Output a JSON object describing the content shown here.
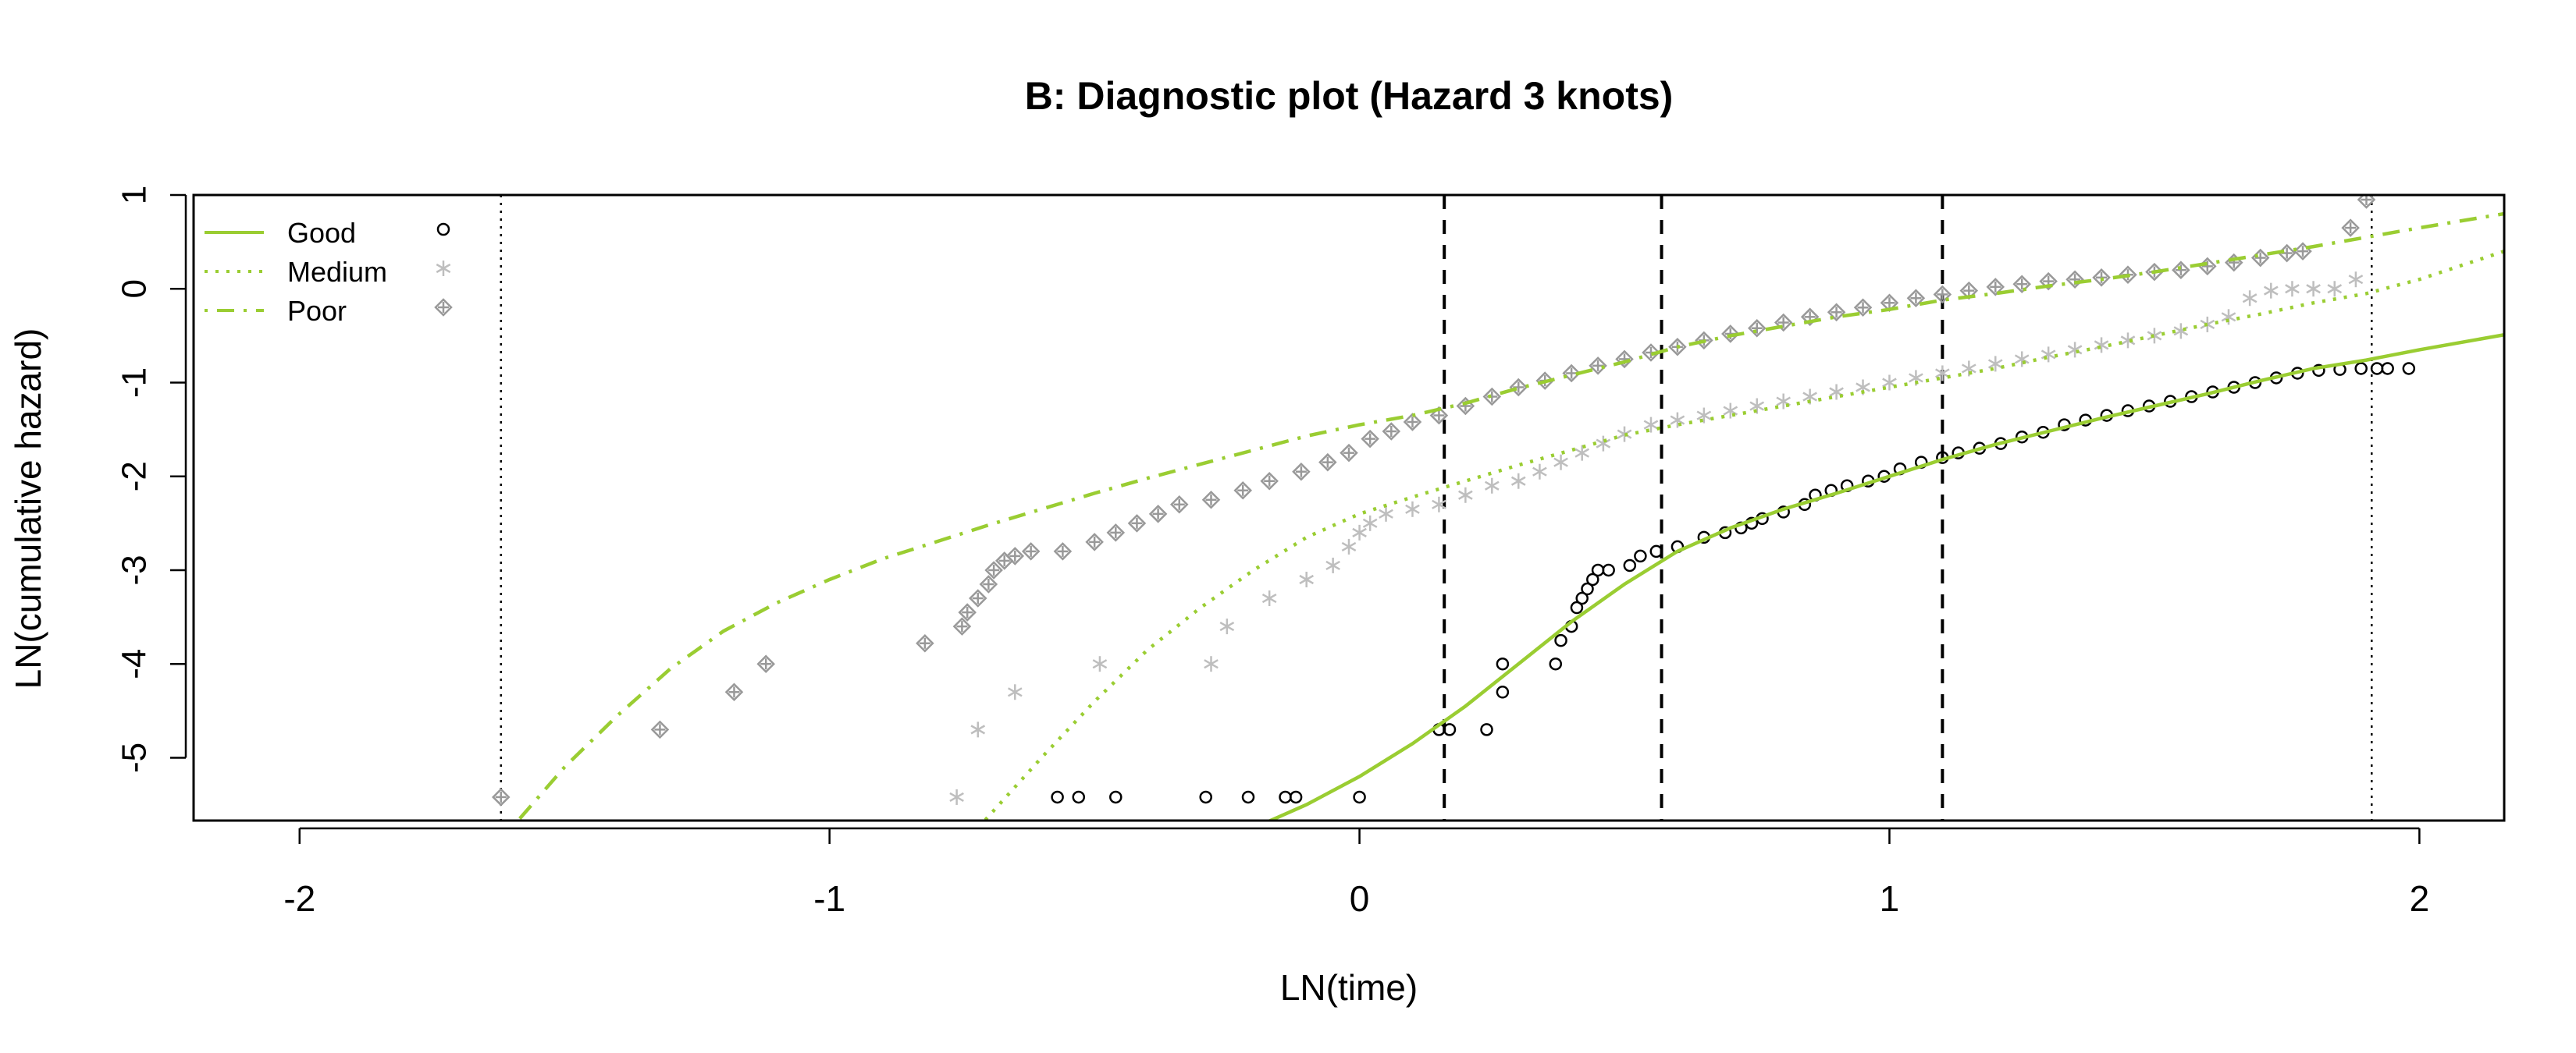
{
  "chart_data": {
    "type": "scatter",
    "title": "B: Diagnostic plot (Hazard 3 knots)",
    "xlabel": "LN(time)",
    "ylabel": "LN(cumulative hazard)",
    "xlim": [
      -2.2,
      2.16
    ],
    "ylim": [
      -5.67,
      1.0
    ],
    "xticks": [
      -2,
      -1,
      0,
      1,
      2
    ],
    "yticks": [
      -5,
      -4,
      -3,
      -2,
      -1,
      0,
      1
    ],
    "grid": false,
    "legend_position": "top-left",
    "boundary_knots": [
      -1.62,
      1.91
    ],
    "interior_knots": [
      0.16,
      0.57,
      1.1
    ],
    "line_color": "#9ACD32",
    "series": [
      {
        "name": "Good",
        "line_style": "solid",
        "marker": "circle",
        "marker_color": "#000000",
        "fit": [
          [
            -0.2,
            -5.75
          ],
          [
            -0.1,
            -5.5
          ],
          [
            0.0,
            -5.2
          ],
          [
            0.1,
            -4.85
          ],
          [
            0.2,
            -4.45
          ],
          [
            0.3,
            -4.0
          ],
          [
            0.4,
            -3.55
          ],
          [
            0.5,
            -3.15
          ],
          [
            0.6,
            -2.8
          ],
          [
            0.7,
            -2.55
          ],
          [
            0.8,
            -2.35
          ],
          [
            0.9,
            -2.18
          ],
          [
            1.0,
            -2.0
          ],
          [
            1.1,
            -1.82
          ],
          [
            1.2,
            -1.66
          ],
          [
            1.3,
            -1.52
          ],
          [
            1.4,
            -1.38
          ],
          [
            1.5,
            -1.25
          ],
          [
            1.6,
            -1.12
          ],
          [
            1.7,
            -0.98
          ],
          [
            1.8,
            -0.85
          ],
          [
            1.9,
            -0.76
          ],
          [
            2.0,
            -0.65
          ],
          [
            2.16,
            -0.49
          ]
        ],
        "points": [
          [
            0.0,
            -5.42
          ],
          [
            -0.12,
            -5.42
          ],
          [
            -0.14,
            -5.42
          ],
          [
            -0.21,
            -5.42
          ],
          [
            -0.29,
            -5.42
          ],
          [
            -0.46,
            -5.42
          ],
          [
            -0.53,
            -5.42
          ],
          [
            -0.57,
            -5.42
          ],
          [
            0.15,
            -4.7
          ],
          [
            0.17,
            -4.7
          ],
          [
            0.24,
            -4.7
          ],
          [
            0.27,
            -4.3
          ],
          [
            0.27,
            -4.0
          ],
          [
            0.37,
            -4.0
          ],
          [
            0.38,
            -3.75
          ],
          [
            0.4,
            -3.6
          ],
          [
            0.41,
            -3.4
          ],
          [
            0.42,
            -3.3
          ],
          [
            0.43,
            -3.2
          ],
          [
            0.44,
            -3.1
          ],
          [
            0.45,
            -3.0
          ],
          [
            0.47,
            -3.0
          ],
          [
            0.51,
            -2.95
          ],
          [
            0.53,
            -2.85
          ],
          [
            0.56,
            -2.8
          ],
          [
            0.6,
            -2.75
          ],
          [
            0.65,
            -2.65
          ],
          [
            0.69,
            -2.6
          ],
          [
            0.72,
            -2.55
          ],
          [
            0.74,
            -2.5
          ],
          [
            0.76,
            -2.45
          ],
          [
            0.8,
            -2.38
          ],
          [
            0.84,
            -2.3
          ],
          [
            0.86,
            -2.2
          ],
          [
            0.89,
            -2.15
          ],
          [
            0.92,
            -2.1
          ],
          [
            0.96,
            -2.05
          ],
          [
            0.99,
            -2.0
          ],
          [
            1.02,
            -1.92
          ],
          [
            1.06,
            -1.85
          ],
          [
            1.1,
            -1.8
          ],
          [
            1.13,
            -1.75
          ],
          [
            1.17,
            -1.7
          ],
          [
            1.21,
            -1.65
          ],
          [
            1.25,
            -1.58
          ],
          [
            1.29,
            -1.53
          ],
          [
            1.33,
            -1.45
          ],
          [
            1.37,
            -1.4
          ],
          [
            1.41,
            -1.35
          ],
          [
            1.45,
            -1.3
          ],
          [
            1.49,
            -1.25
          ],
          [
            1.53,
            -1.2
          ],
          [
            1.57,
            -1.15
          ],
          [
            1.61,
            -1.1
          ],
          [
            1.65,
            -1.05
          ],
          [
            1.69,
            -1.0
          ],
          [
            1.73,
            -0.95
          ],
          [
            1.77,
            -0.9
          ],
          [
            1.81,
            -0.87
          ],
          [
            1.85,
            -0.86
          ],
          [
            1.89,
            -0.85
          ],
          [
            1.92,
            -0.85
          ],
          [
            1.94,
            -0.85
          ],
          [
            1.98,
            -0.85
          ]
        ]
      },
      {
        "name": "Medium",
        "line_style": "dotted",
        "marker": "asterisk",
        "marker_color": "#BEBEBE",
        "fit": [
          [
            -0.72,
            -5.75
          ],
          [
            -0.6,
            -5.0
          ],
          [
            -0.5,
            -4.4
          ],
          [
            -0.4,
            -3.85
          ],
          [
            -0.3,
            -3.4
          ],
          [
            -0.2,
            -3.0
          ],
          [
            -0.1,
            -2.65
          ],
          [
            0.0,
            -2.4
          ],
          [
            0.1,
            -2.22
          ],
          [
            0.2,
            -2.05
          ],
          [
            0.3,
            -1.88
          ],
          [
            0.4,
            -1.72
          ],
          [
            0.5,
            -1.56
          ],
          [
            0.6,
            -1.45
          ],
          [
            0.7,
            -1.35
          ],
          [
            0.8,
            -1.25
          ],
          [
            0.9,
            -1.15
          ],
          [
            1.0,
            -1.05
          ],
          [
            1.1,
            -0.95
          ],
          [
            1.2,
            -0.85
          ],
          [
            1.3,
            -0.73
          ],
          [
            1.4,
            -0.62
          ],
          [
            1.5,
            -0.5
          ],
          [
            1.6,
            -0.38
          ],
          [
            1.7,
            -0.27
          ],
          [
            1.8,
            -0.15
          ],
          [
            1.9,
            -0.05
          ],
          [
            2.0,
            0.1
          ],
          [
            2.16,
            0.4
          ]
        ],
        "points": [
          [
            -0.76,
            -5.42
          ],
          [
            -0.72,
            -4.7
          ],
          [
            -0.65,
            -4.3
          ],
          [
            -0.49,
            -4.0
          ],
          [
            -0.28,
            -4.0
          ],
          [
            -0.25,
            -3.6
          ],
          [
            -0.17,
            -3.3
          ],
          [
            -0.1,
            -3.1
          ],
          [
            -0.05,
            -2.95
          ],
          [
            -0.02,
            -2.75
          ],
          [
            0.0,
            -2.6
          ],
          [
            0.02,
            -2.5
          ],
          [
            0.05,
            -2.4
          ],
          [
            0.1,
            -2.35
          ],
          [
            0.15,
            -2.3
          ],
          [
            0.2,
            -2.2
          ],
          [
            0.25,
            -2.1
          ],
          [
            0.3,
            -2.05
          ],
          [
            0.34,
            -1.95
          ],
          [
            0.38,
            -1.85
          ],
          [
            0.42,
            -1.75
          ],
          [
            0.46,
            -1.65
          ],
          [
            0.5,
            -1.55
          ],
          [
            0.55,
            -1.45
          ],
          [
            0.6,
            -1.4
          ],
          [
            0.65,
            -1.35
          ],
          [
            0.7,
            -1.3
          ],
          [
            0.75,
            -1.25
          ],
          [
            0.8,
            -1.2
          ],
          [
            0.85,
            -1.15
          ],
          [
            0.9,
            -1.1
          ],
          [
            0.95,
            -1.05
          ],
          [
            1.0,
            -1.0
          ],
          [
            1.05,
            -0.95
          ],
          [
            1.1,
            -0.9
          ],
          [
            1.15,
            -0.85
          ],
          [
            1.2,
            -0.8
          ],
          [
            1.25,
            -0.75
          ],
          [
            1.3,
            -0.7
          ],
          [
            1.35,
            -0.65
          ],
          [
            1.4,
            -0.6
          ],
          [
            1.45,
            -0.55
          ],
          [
            1.5,
            -0.5
          ],
          [
            1.55,
            -0.45
          ],
          [
            1.6,
            -0.38
          ],
          [
            1.64,
            -0.3
          ],
          [
            1.68,
            -0.1
          ],
          [
            1.72,
            -0.02
          ],
          [
            1.76,
            0.0
          ],
          [
            1.8,
            0.0
          ],
          [
            1.84,
            0.0
          ],
          [
            1.88,
            0.1
          ]
        ]
      },
      {
        "name": "Poor",
        "line_style": "dotdash",
        "marker": "diamond-plus",
        "marker_color": "#999999",
        "fit": [
          [
            -1.6,
            -5.75
          ],
          [
            -1.5,
            -5.1
          ],
          [
            -1.4,
            -4.55
          ],
          [
            -1.3,
            -4.05
          ],
          [
            -1.2,
            -3.65
          ],
          [
            -1.1,
            -3.35
          ],
          [
            -1.0,
            -3.1
          ],
          [
            -0.9,
            -2.88
          ],
          [
            -0.8,
            -2.7
          ],
          [
            -0.7,
            -2.52
          ],
          [
            -0.6,
            -2.35
          ],
          [
            -0.5,
            -2.18
          ],
          [
            -0.4,
            -2.02
          ],
          [
            -0.3,
            -1.87
          ],
          [
            -0.2,
            -1.72
          ],
          [
            -0.1,
            -1.57
          ],
          [
            0.0,
            -1.45
          ],
          [
            0.1,
            -1.35
          ],
          [
            0.2,
            -1.22
          ],
          [
            0.3,
            -1.06
          ],
          [
            0.4,
            -0.92
          ],
          [
            0.5,
            -0.78
          ],
          [
            0.6,
            -0.62
          ],
          [
            0.7,
            -0.5
          ],
          [
            0.8,
            -0.4
          ],
          [
            0.9,
            -0.3
          ],
          [
            1.0,
            -0.22
          ],
          [
            1.1,
            -0.12
          ],
          [
            1.2,
            -0.05
          ],
          [
            1.3,
            0.03
          ],
          [
            1.4,
            0.1
          ],
          [
            1.5,
            0.18
          ],
          [
            1.6,
            0.27
          ],
          [
            1.7,
            0.36
          ],
          [
            1.8,
            0.45
          ],
          [
            1.9,
            0.55
          ],
          [
            2.0,
            0.65
          ],
          [
            2.16,
            0.8
          ]
        ],
        "points": [
          [
            -1.62,
            -5.42
          ],
          [
            -1.32,
            -4.7
          ],
          [
            -1.18,
            -4.3
          ],
          [
            -1.12,
            -4.0
          ],
          [
            -0.82,
            -3.78
          ],
          [
            -0.75,
            -3.6
          ],
          [
            -0.74,
            -3.45
          ],
          [
            -0.72,
            -3.3
          ],
          [
            -0.7,
            -3.15
          ],
          [
            -0.69,
            -3.0
          ],
          [
            -0.67,
            -2.9
          ],
          [
            -0.65,
            -2.85
          ],
          [
            -0.62,
            -2.8
          ],
          [
            -0.56,
            -2.8
          ],
          [
            -0.5,
            -2.7
          ],
          [
            -0.46,
            -2.6
          ],
          [
            -0.42,
            -2.5
          ],
          [
            -0.38,
            -2.4
          ],
          [
            -0.34,
            -2.3
          ],
          [
            -0.28,
            -2.25
          ],
          [
            -0.22,
            -2.15
          ],
          [
            -0.17,
            -2.05
          ],
          [
            -0.11,
            -1.95
          ],
          [
            -0.06,
            -1.85
          ],
          [
            -0.02,
            -1.75
          ],
          [
            0.02,
            -1.6
          ],
          [
            0.06,
            -1.52
          ],
          [
            0.1,
            -1.42
          ],
          [
            0.15,
            -1.35
          ],
          [
            0.2,
            -1.25
          ],
          [
            0.25,
            -1.15
          ],
          [
            0.3,
            -1.05
          ],
          [
            0.35,
            -0.98
          ],
          [
            0.4,
            -0.9
          ],
          [
            0.45,
            -0.82
          ],
          [
            0.5,
            -0.75
          ],
          [
            0.55,
            -0.68
          ],
          [
            0.6,
            -0.62
          ],
          [
            0.65,
            -0.55
          ],
          [
            0.7,
            -0.48
          ],
          [
            0.75,
            -0.42
          ],
          [
            0.8,
            -0.36
          ],
          [
            0.85,
            -0.3
          ],
          [
            0.9,
            -0.25
          ],
          [
            0.95,
            -0.2
          ],
          [
            1.0,
            -0.15
          ],
          [
            1.05,
            -0.1
          ],
          [
            1.1,
            -0.06
          ],
          [
            1.15,
            -0.02
          ],
          [
            1.2,
            0.02
          ],
          [
            1.25,
            0.05
          ],
          [
            1.3,
            0.08
          ],
          [
            1.35,
            0.1
          ],
          [
            1.4,
            0.12
          ],
          [
            1.45,
            0.15
          ],
          [
            1.5,
            0.18
          ],
          [
            1.55,
            0.2
          ],
          [
            1.6,
            0.24
          ],
          [
            1.65,
            0.28
          ],
          [
            1.7,
            0.33
          ],
          [
            1.75,
            0.38
          ],
          [
            1.78,
            0.4
          ],
          [
            1.87,
            0.65
          ],
          [
            1.9,
            0.95
          ]
        ]
      }
    ]
  }
}
